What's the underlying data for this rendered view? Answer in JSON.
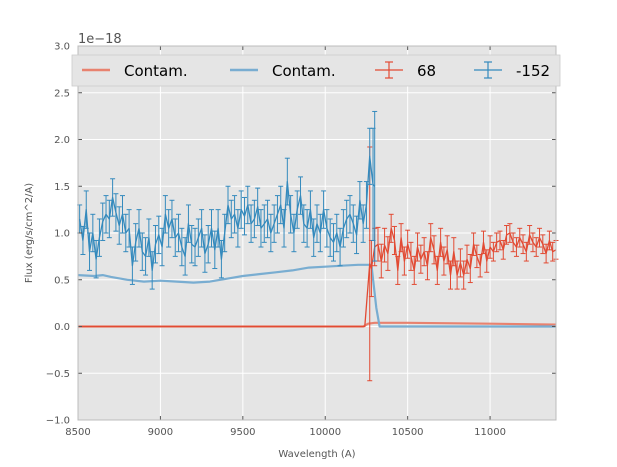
{
  "chart_data": {
    "type": "line",
    "title": "",
    "xlabel": "Wavelength (A)",
    "ylabel": "Flux (erg/s/cm^2/A)",
    "offset_text": "1e−18",
    "xlim": [
      8500,
      11400
    ],
    "ylim": [
      -1.0,
      3.0
    ],
    "xticks": [
      8500,
      9000,
      9500,
      10000,
      10500,
      11000
    ],
    "xtick_labels": [
      "8500",
      "9000",
      "9500",
      "10000",
      "10500",
      "11000"
    ],
    "yticks": [
      -1.0,
      -0.5,
      0.0,
      0.5,
      1.0,
      1.5,
      2.0,
      2.5,
      3.0
    ],
    "ytick_labels": [
      "−1.0",
      "−0.5",
      "0.0",
      "0.5",
      "1.0",
      "1.5",
      "2.0",
      "2.5",
      "3.0"
    ],
    "grid": true,
    "legend_position": "top",
    "legend": [
      {
        "label": "Contam.",
        "kind": "line",
        "color": "#E8826F"
      },
      {
        "label": "Contam.",
        "kind": "line",
        "color": "#79ADD1"
      },
      {
        "label": "68",
        "kind": "errorbar",
        "color": "#E24A33"
      },
      {
        "label": "-152",
        "kind": "errorbar",
        "color": "#348ABD"
      }
    ],
    "colors": {
      "red": "#E24A33",
      "blue": "#348ABD",
      "red_contam": "#E8826F",
      "blue_contam": "#79ADD1",
      "background": "#E5E5E5",
      "grid": "#FFFFFF"
    },
    "series": [
      {
        "name": "Contam. (68)",
        "style": "contam",
        "color": "#E8826F",
        "x": [
          8500,
          10230,
          10260,
          10300,
          10500,
          11000,
          11400
        ],
        "y": [
          0.0,
          0.0,
          0.03,
          0.04,
          0.04,
          0.03,
          0.02
        ]
      },
      {
        "name": "Contam. (-152)",
        "style": "contam",
        "color": "#79ADD1",
        "x": [
          8500,
          8600,
          8650,
          8700,
          8800,
          8900,
          9000,
          9100,
          9200,
          9300,
          9400,
          9500,
          9600,
          9700,
          9800,
          9900,
          10000,
          10100,
          10200,
          10280,
          10310,
          10330,
          10500,
          11000,
          11400
        ],
        "y": [
          0.55,
          0.54,
          0.55,
          0.53,
          0.5,
          0.48,
          0.49,
          0.48,
          0.47,
          0.48,
          0.51,
          0.54,
          0.56,
          0.58,
          0.6,
          0.63,
          0.64,
          0.65,
          0.66,
          0.66,
          0.2,
          0.0,
          0.0,
          0.0,
          0.0
        ]
      },
      {
        "name": "68",
        "style": "errorbar",
        "color": "#E24A33",
        "x": [
          8500,
          10240,
          10270,
          10280,
          10300,
          10320,
          10340,
          10360,
          10380,
          10400,
          10420,
          10440,
          10460,
          10480,
          10500,
          10520,
          10540,
          10560,
          10580,
          10600,
          10620,
          10640,
          10660,
          10680,
          10700,
          10720,
          10740,
          10760,
          10780,
          10800,
          10820,
          10840,
          10860,
          10880,
          10900,
          10920,
          10940,
          10960,
          10980,
          11000,
          11020,
          11040,
          11060,
          11080,
          11100,
          11120,
          11140,
          11160,
          11180,
          11200,
          11220,
          11240,
          11260,
          11280,
          11300,
          11320,
          11340,
          11360,
          11380,
          11400
        ],
        "y": [
          0.0,
          0.0,
          0.67,
          0.62,
          0.85,
          0.88,
          0.7,
          0.87,
          0.78,
          1.05,
          0.92,
          0.6,
          0.95,
          0.7,
          0.88,
          0.75,
          0.6,
          0.85,
          0.72,
          0.8,
          0.65,
          0.95,
          0.82,
          0.6,
          0.9,
          0.7,
          0.82,
          0.55,
          0.8,
          0.55,
          0.68,
          0.55,
          0.72,
          0.62,
          0.88,
          0.75,
          0.65,
          0.9,
          0.7,
          0.85,
          0.8,
          0.9,
          0.92,
          0.82,
          0.98,
          1.0,
          0.9,
          0.85,
          0.95,
          0.88,
          0.8,
          0.98,
          0.9,
          0.85,
          0.95,
          0.88,
          0.78,
          0.92,
          0.8,
          0.82
        ],
        "err": [
          0.0,
          0.0,
          1.25,
          0.3,
          0.2,
          0.18,
          0.18,
          0.18,
          0.18,
          0.15,
          0.15,
          0.15,
          0.15,
          0.15,
          0.15,
          0.15,
          0.15,
          0.15,
          0.15,
          0.15,
          0.15,
          0.15,
          0.15,
          0.15,
          0.15,
          0.15,
          0.15,
          0.15,
          0.15,
          0.15,
          0.15,
          0.15,
          0.15,
          0.15,
          0.12,
          0.12,
          0.12,
          0.12,
          0.12,
          0.12,
          0.1,
          0.1,
          0.1,
          0.1,
          0.1,
          0.1,
          0.1,
          0.1,
          0.1,
          0.1,
          0.1,
          0.1,
          0.1,
          0.1,
          0.1,
          0.1,
          0.1,
          0.1,
          0.1,
          0.1
        ]
      },
      {
        "name": "-152",
        "style": "errorbar",
        "color": "#348ABD",
        "x": [
          8510,
          8530,
          8550,
          8570,
          8590,
          8610,
          8630,
          8650,
          8670,
          8690,
          8710,
          8730,
          8750,
          8770,
          8790,
          8810,
          8830,
          8850,
          8870,
          8890,
          8910,
          8930,
          8950,
          8970,
          8990,
          9010,
          9030,
          9050,
          9070,
          9090,
          9110,
          9130,
          9150,
          9170,
          9190,
          9210,
          9230,
          9250,
          9270,
          9290,
          9310,
          9330,
          9350,
          9370,
          9390,
          9410,
          9430,
          9450,
          9470,
          9490,
          9510,
          9530,
          9550,
          9570,
          9590,
          9610,
          9630,
          9650,
          9670,
          9690,
          9710,
          9730,
          9750,
          9770,
          9790,
          9810,
          9830,
          9850,
          9870,
          9890,
          9910,
          9930,
          9950,
          9970,
          9990,
          10010,
          10030,
          10050,
          10070,
          10090,
          10110,
          10130,
          10150,
          10170,
          10190,
          10210,
          10230,
          10250,
          10270,
          10290,
          10300
        ],
        "y": [
          1.15,
          0.92,
          1.25,
          0.8,
          1.0,
          0.72,
          0.95,
          1.12,
          1.2,
          1.15,
          1.38,
          1.22,
          1.08,
          1.2,
          1.0,
          1.05,
          0.65,
          0.9,
          1.05,
          0.8,
          0.75,
          0.95,
          0.6,
          0.88,
          0.98,
          0.85,
          1.2,
          1.05,
          1.15,
          0.95,
          1.0,
          0.85,
          0.75,
          1.1,
          0.88,
          0.85,
          0.95,
          1.05,
          0.78,
          0.88,
          1.05,
          0.82,
          1.05,
          0.72,
          1.0,
          1.3,
          1.15,
          1.2,
          1.05,
          1.25,
          1.18,
          1.3,
          1.1,
          1.15,
          1.28,
          1.05,
          1.1,
          1.15,
          1.0,
          1.1,
          1.2,
          1.3,
          1.05,
          1.55,
          1.2,
          1.0,
          1.25,
          1.4,
          1.1,
          1.05,
          1.25,
          0.95,
          1.1,
          1.0,
          1.25,
          1.05,
          0.95,
          0.9,
          1.0,
          0.85,
          1.05,
          1.15,
          1.2,
          1.1,
          0.98,
          1.35,
          1.1,
          1.3,
          1.82,
          1.52,
          1.5
        ],
        "err": [
          0.15,
          0.15,
          0.2,
          0.2,
          0.2,
          0.2,
          0.2,
          0.2,
          0.2,
          0.2,
          0.2,
          0.2,
          0.2,
          0.2,
          0.2,
          0.2,
          0.2,
          0.2,
          0.2,
          0.2,
          0.2,
          0.2,
          0.2,
          0.2,
          0.2,
          0.2,
          0.2,
          0.2,
          0.2,
          0.2,
          0.2,
          0.2,
          0.2,
          0.2,
          0.2,
          0.2,
          0.2,
          0.2,
          0.2,
          0.2,
          0.2,
          0.2,
          0.2,
          0.2,
          0.2,
          0.2,
          0.2,
          0.2,
          0.2,
          0.2,
          0.2,
          0.2,
          0.2,
          0.2,
          0.2,
          0.2,
          0.2,
          0.2,
          0.2,
          0.2,
          0.2,
          0.2,
          0.2,
          0.25,
          0.2,
          0.2,
          0.2,
          0.2,
          0.2,
          0.2,
          0.2,
          0.2,
          0.2,
          0.2,
          0.2,
          0.2,
          0.2,
          0.2,
          0.2,
          0.2,
          0.2,
          0.2,
          0.2,
          0.2,
          0.2,
          0.2,
          0.2,
          0.25,
          0.3,
          0.6,
          0.8
        ]
      }
    ]
  }
}
